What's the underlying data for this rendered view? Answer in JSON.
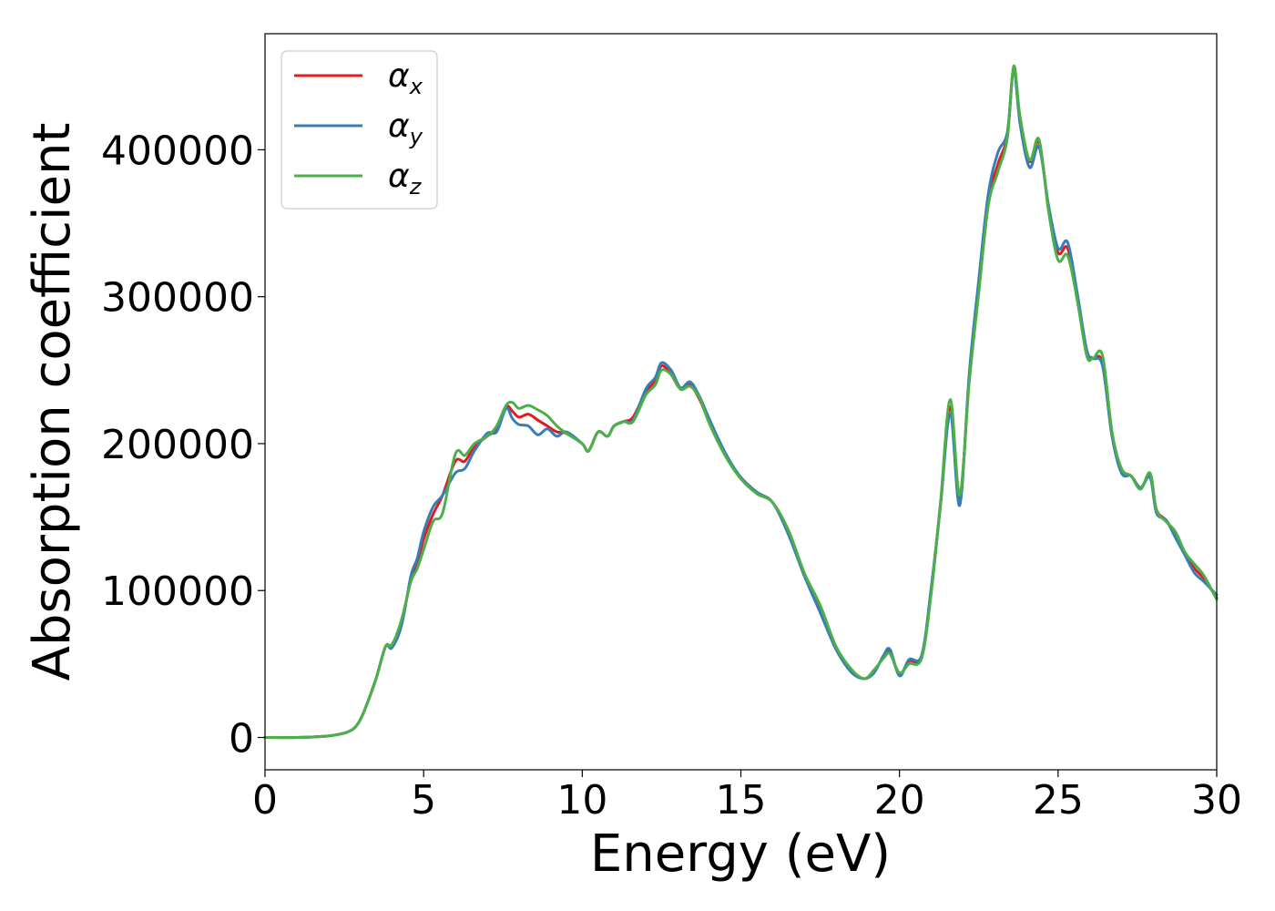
{
  "chart_data": {
    "type": "line",
    "title": "",
    "xlabel": "Energy (eV)",
    "ylabel": "Absorption coefficient",
    "xlim": [
      0,
      30
    ],
    "ylim": [
      -22000,
      479000
    ],
    "xticks": [
      0,
      5,
      10,
      15,
      20,
      25,
      30
    ],
    "xtick_labels": [
      "0",
      "5",
      "10",
      "15",
      "20",
      "25",
      "30"
    ],
    "yticks": [
      0,
      100000,
      200000,
      300000,
      400000
    ],
    "ytick_labels": [
      "0",
      "100000",
      "200000",
      "300000",
      "400000"
    ],
    "grid": false,
    "legend_position": "top-left",
    "x": [
      0,
      1,
      2,
      2.5,
      2.8,
      3,
      3.2,
      3.5,
      3.8,
      4,
      4.3,
      4.6,
      4.8,
      5,
      5.3,
      5.6,
      6,
      6.3,
      6.6,
      7,
      7.3,
      7.6,
      7.8,
      8,
      8.3,
      8.6,
      8.9,
      9.2,
      9.5,
      10,
      10.2,
      10.5,
      10.8,
      11,
      11.3,
      11.6,
      12,
      12.3,
      12.5,
      12.8,
      13.1,
      13.4,
      13.7,
      14,
      14.5,
      15,
      15.5,
      16,
      16.5,
      17,
      17.5,
      18,
      18.5,
      18.9,
      19.2,
      19.5,
      19.7,
      20,
      20.3,
      20.7,
      21,
      21.3,
      21.6,
      21.9,
      22.2,
      22.5,
      22.8,
      23.1,
      23.4,
      23.6,
      23.8,
      24.1,
      24.4,
      24.7,
      25,
      25.3,
      25.6,
      25.9,
      26.1,
      26.4,
      26.7,
      27,
      27.3,
      27.6,
      27.9,
      28.1,
      28.4,
      28.7,
      29,
      29.3,
      29.6,
      30
    ],
    "series": [
      {
        "name": "αx",
        "color": "#e41a1c",
        "values": [
          0,
          0,
          1000,
          3000,
          6000,
          12000,
          22000,
          40000,
          62000,
          63000,
          78000,
          108000,
          118000,
          135000,
          152000,
          165000,
          188000,
          188000,
          198000,
          205000,
          210000,
          225000,
          222000,
          218000,
          220000,
          216000,
          212000,
          208000,
          207000,
          200000,
          195000,
          208000,
          205000,
          212000,
          215000,
          218000,
          235000,
          243000,
          253000,
          247000,
          237000,
          240000,
          230000,
          215000,
          193000,
          177000,
          167000,
          160000,
          140000,
          110000,
          88000,
          60000,
          45000,
          40000,
          45000,
          55000,
          58000,
          43000,
          52000,
          55000,
          100000,
          160000,
          225000,
          162000,
          245000,
          305000,
          365000,
          390000,
          410000,
          455000,
          420000,
          392000,
          405000,
          360000,
          330000,
          333000,
          300000,
          262000,
          258000,
          255000,
          205000,
          182000,
          178000,
          170000,
          178000,
          155000,
          148000,
          138000,
          125000,
          115000,
          108000,
          95000
        ]
      },
      {
        "name": "αy",
        "color": "#377eb8",
        "values": [
          0,
          0,
          1000,
          3000,
          6000,
          12000,
          22000,
          40000,
          62000,
          61000,
          76000,
          110000,
          122000,
          140000,
          157000,
          165000,
          180000,
          183000,
          195000,
          207000,
          208000,
          224000,
          217000,
          213000,
          212000,
          206000,
          210000,
          205000,
          208000,
          200000,
          195000,
          208000,
          205000,
          212000,
          215000,
          216000,
          237000,
          245000,
          255000,
          250000,
          238000,
          242000,
          232000,
          217000,
          194000,
          177000,
          167000,
          160000,
          138000,
          110000,
          85000,
          60000,
          44000,
          40000,
          44000,
          56000,
          60000,
          42000,
          53000,
          56000,
          102000,
          160000,
          220000,
          158000,
          248000,
          312000,
          370000,
          398000,
          412000,
          455000,
          418000,
          388000,
          402000,
          362000,
          333000,
          337000,
          303000,
          264000,
          258000,
          253000,
          205000,
          180000,
          178000,
          170000,
          177000,
          153000,
          148000,
          136000,
          124000,
          112000,
          106000,
          97000
        ]
      },
      {
        "name": "αz",
        "color": "#4daf4a",
        "values": [
          0,
          0,
          1000,
          3000,
          6000,
          12000,
          22000,
          40000,
          62000,
          63000,
          80000,
          106000,
          115000,
          128000,
          147000,
          153000,
          193000,
          192000,
          200000,
          205000,
          212000,
          226000,
          228000,
          224000,
          226000,
          223000,
          219000,
          212000,
          207000,
          200000,
          195000,
          208000,
          205000,
          212000,
          215000,
          215000,
          233000,
          240000,
          250000,
          247000,
          237000,
          239000,
          231000,
          214000,
          192000,
          176000,
          166000,
          160000,
          141000,
          112000,
          90000,
          62000,
          46000,
          40000,
          46000,
          54000,
          57000,
          44000,
          50000,
          54000,
          98000,
          162000,
          230000,
          165000,
          242000,
          303000,
          362000,
          385000,
          408000,
          457000,
          423000,
          393000,
          407000,
          358000,
          325000,
          328000,
          298000,
          260000,
          258000,
          260000,
          208000,
          183000,
          178000,
          169000,
          180000,
          155000,
          147000,
          140000,
          126000,
          118000,
          110000,
          94000
        ]
      }
    ]
  }
}
